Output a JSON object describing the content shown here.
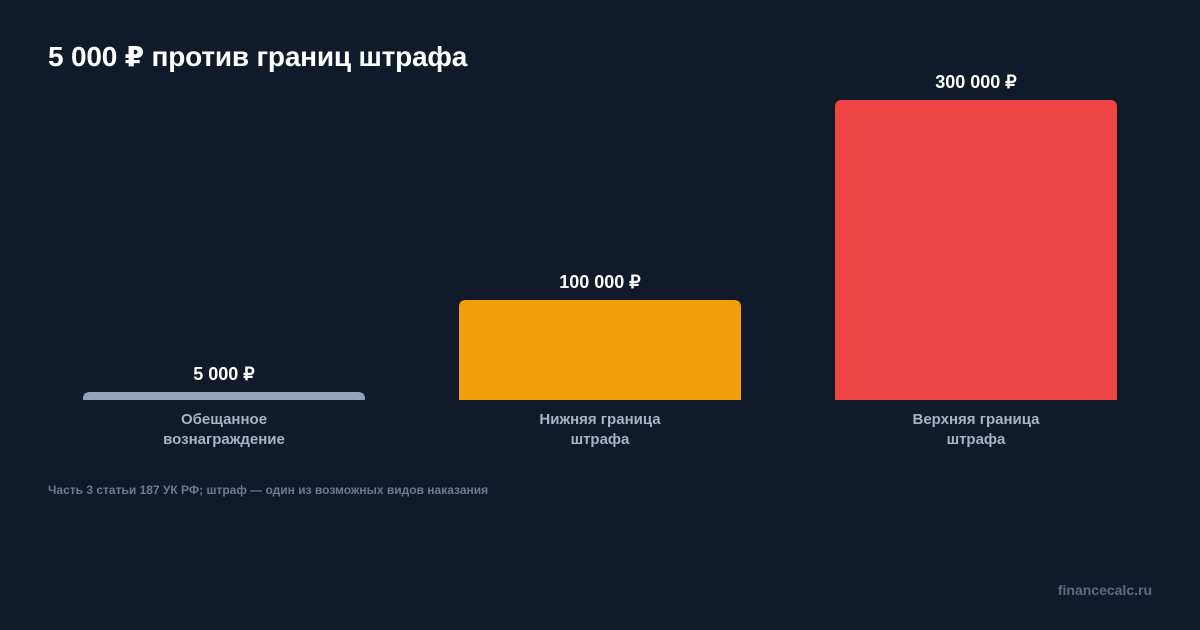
{
  "title": "5 000 ₽ против границ штрафа",
  "chart_data": {
    "type": "bar",
    "categories": [
      [
        "Обещанное",
        "вознаграждение"
      ],
      [
        "Нижняя граница",
        "штрафа"
      ],
      [
        "Верхняя граница",
        "штрафа"
      ]
    ],
    "values": [
      5000,
      100000,
      300000
    ],
    "value_labels": [
      "5 000 ₽",
      "100 000 ₽",
      "300 000 ₽"
    ],
    "colors": [
      "#94a3b8",
      "#f59e0b",
      "#ef4444"
    ],
    "ylim": [
      0,
      300000
    ]
  },
  "note": "Часть 3 статьи 187 УК РФ; штраф — один из возможных видов наказания",
  "brand": "financecalc.ru"
}
